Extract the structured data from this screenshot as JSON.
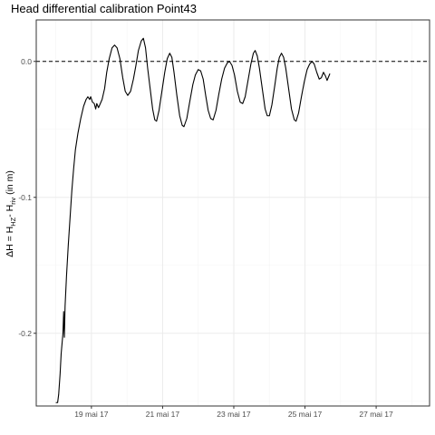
{
  "chart_data": {
    "type": "line",
    "title": "Head differential calibration Point43",
    "ylabel_main": "ΔH = H",
    "ylabel_sub1": "HZ",
    "ylabel_mid": "- H",
    "ylabel_sub2": "riv",
    "ylabel_unit": " (in m)",
    "xlabel": "",
    "x_unit": "days since 18 mai 17 00:00 (x axis date)",
    "xlim": [
      -0.55,
      10.5
    ],
    "ylim": [
      -0.2535,
      0.0305
    ],
    "x_ticks": [
      {
        "value": 1,
        "label": "19 mai 17"
      },
      {
        "value": 3,
        "label": "21 mai 17"
      },
      {
        "value": 5,
        "label": "23 mai 17"
      },
      {
        "value": 7,
        "label": "25 mai 17"
      },
      {
        "value": 9,
        "label": "27 mai 17"
      }
    ],
    "y_ticks": [
      {
        "value": 0.0,
        "label": "0.0"
      },
      {
        "value": -0.1,
        "label": "-0.1"
      },
      {
        "value": -0.2,
        "label": "-0.2"
      }
    ],
    "reference_line": {
      "y": 0.0,
      "style": "dashed"
    },
    "grid": true,
    "series": [
      {
        "name": "",
        "color": "#000000",
        "points": [
          [
            0.0,
            -0.251
          ],
          [
            0.05,
            -0.251
          ],
          [
            0.08,
            -0.245
          ],
          [
            0.12,
            -0.23
          ],
          [
            0.15,
            -0.215
          ],
          [
            0.2,
            -0.2
          ],
          [
            0.22,
            -0.184
          ],
          [
            0.24,
            -0.203
          ],
          [
            0.26,
            -0.18
          ],
          [
            0.3,
            -0.158
          ],
          [
            0.35,
            -0.135
          ],
          [
            0.4,
            -0.115
          ],
          [
            0.45,
            -0.095
          ],
          [
            0.5,
            -0.079
          ],
          [
            0.55,
            -0.065
          ],
          [
            0.62,
            -0.053
          ],
          [
            0.7,
            -0.042
          ],
          [
            0.78,
            -0.033
          ],
          [
            0.85,
            -0.028
          ],
          [
            0.9,
            -0.026
          ],
          [
            0.95,
            -0.028
          ],
          [
            0.98,
            -0.026
          ],
          [
            1.03,
            -0.03
          ],
          [
            1.08,
            -0.031
          ],
          [
            1.12,
            -0.035
          ],
          [
            1.15,
            -0.031
          ],
          [
            1.2,
            -0.034
          ],
          [
            1.25,
            -0.031
          ],
          [
            1.3,
            -0.028
          ],
          [
            1.37,
            -0.02
          ],
          [
            1.43,
            -0.008
          ],
          [
            1.5,
            0.002
          ],
          [
            1.58,
            0.01
          ],
          [
            1.65,
            0.012
          ],
          [
            1.72,
            0.01
          ],
          [
            1.8,
            0.002
          ],
          [
            1.88,
            -0.012
          ],
          [
            1.95,
            -0.022
          ],
          [
            2.02,
            -0.025
          ],
          [
            2.1,
            -0.022
          ],
          [
            2.18,
            -0.013
          ],
          [
            2.25,
            -0.003
          ],
          [
            2.32,
            0.008
          ],
          [
            2.4,
            0.015
          ],
          [
            2.46,
            0.017
          ],
          [
            2.52,
            0.01
          ],
          [
            2.58,
            -0.005
          ],
          [
            2.65,
            -0.02
          ],
          [
            2.72,
            -0.035
          ],
          [
            2.78,
            -0.043
          ],
          [
            2.83,
            -0.044
          ],
          [
            2.9,
            -0.036
          ],
          [
            2.98,
            -0.022
          ],
          [
            3.06,
            -0.008
          ],
          [
            3.13,
            0.002
          ],
          [
            3.2,
            0.006
          ],
          [
            3.26,
            0.003
          ],
          [
            3.32,
            -0.008
          ],
          [
            3.4,
            -0.025
          ],
          [
            3.48,
            -0.04
          ],
          [
            3.55,
            -0.047
          ],
          [
            3.6,
            -0.048
          ],
          [
            3.68,
            -0.042
          ],
          [
            3.76,
            -0.03
          ],
          [
            3.85,
            -0.017
          ],
          [
            3.92,
            -0.01
          ],
          [
            4.0,
            -0.006
          ],
          [
            4.07,
            -0.007
          ],
          [
            4.14,
            -0.013
          ],
          [
            4.21,
            -0.025
          ],
          [
            4.28,
            -0.036
          ],
          [
            4.35,
            -0.042
          ],
          [
            4.42,
            -0.043
          ],
          [
            4.5,
            -0.036
          ],
          [
            4.58,
            -0.024
          ],
          [
            4.66,
            -0.013
          ],
          [
            4.74,
            -0.005
          ],
          [
            4.82,
            -0.001
          ],
          [
            4.88,
            0.0
          ],
          [
            4.95,
            -0.003
          ],
          [
            5.02,
            -0.01
          ],
          [
            5.1,
            -0.022
          ],
          [
            5.18,
            -0.03
          ],
          [
            5.25,
            -0.031
          ],
          [
            5.32,
            -0.026
          ],
          [
            5.4,
            -0.014
          ],
          [
            5.48,
            -0.002
          ],
          [
            5.55,
            0.006
          ],
          [
            5.6,
            0.008
          ],
          [
            5.66,
            0.004
          ],
          [
            5.72,
            -0.005
          ],
          [
            5.8,
            -0.02
          ],
          [
            5.88,
            -0.035
          ],
          [
            5.94,
            -0.04
          ],
          [
            6.0,
            -0.04
          ],
          [
            6.07,
            -0.032
          ],
          [
            6.15,
            -0.018
          ],
          [
            6.22,
            -0.005
          ],
          [
            6.28,
            0.003
          ],
          [
            6.34,
            0.006
          ],
          [
            6.4,
            0.003
          ],
          [
            6.46,
            -0.005
          ],
          [
            6.54,
            -0.02
          ],
          [
            6.62,
            -0.035
          ],
          [
            6.7,
            -0.043
          ],
          [
            6.75,
            -0.044
          ],
          [
            6.82,
            -0.038
          ],
          [
            6.9,
            -0.026
          ],
          [
            6.98,
            -0.015
          ],
          [
            7.06,
            -0.006
          ],
          [
            7.13,
            -0.002
          ],
          [
            7.2,
            0.0
          ],
          [
            7.26,
            -0.002
          ],
          [
            7.33,
            -0.008
          ],
          [
            7.4,
            -0.013
          ],
          [
            7.46,
            -0.012
          ],
          [
            7.52,
            -0.008
          ],
          [
            7.58,
            -0.011
          ],
          [
            7.62,
            -0.014
          ],
          [
            7.7,
            -0.009
          ]
        ]
      }
    ]
  }
}
